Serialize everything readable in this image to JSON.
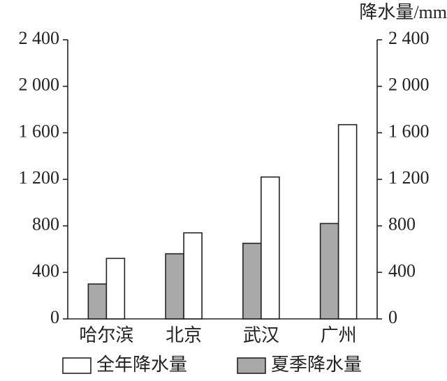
{
  "chart_data": {
    "type": "bar",
    "y_axis_title": "降水量/mm",
    "categories": [
      "哈尔滨",
      "北京",
      "武汉",
      "广州"
    ],
    "series": [
      {
        "name": "夏季降水量",
        "color": "#a9a9a9",
        "values": [
          300,
          560,
          650,
          820
        ]
      },
      {
        "name": "全年降水量",
        "color": "#ffffff",
        "values": [
          520,
          740,
          1220,
          1670
        ]
      }
    ],
    "ylim": [
      0,
      2400
    ],
    "yticks": [
      0,
      400,
      800,
      {
        "value": 1200,
        "label": "1 200"
      },
      {
        "value": 1600,
        "label": "1 600"
      },
      {
        "value": 2000,
        "label": "2 000"
      },
      {
        "value": 2400,
        "label": "2 400"
      }
    ],
    "y2lim": [
      0,
      2400
    ],
    "y2ticks": [
      0,
      400,
      800,
      {
        "value": 1200,
        "label": "1 200"
      },
      {
        "value": 1600,
        "label": "1 600"
      },
      {
        "value": 2000,
        "label": "2 000"
      },
      {
        "value": 2400,
        "label": "2 400"
      }
    ]
  }
}
